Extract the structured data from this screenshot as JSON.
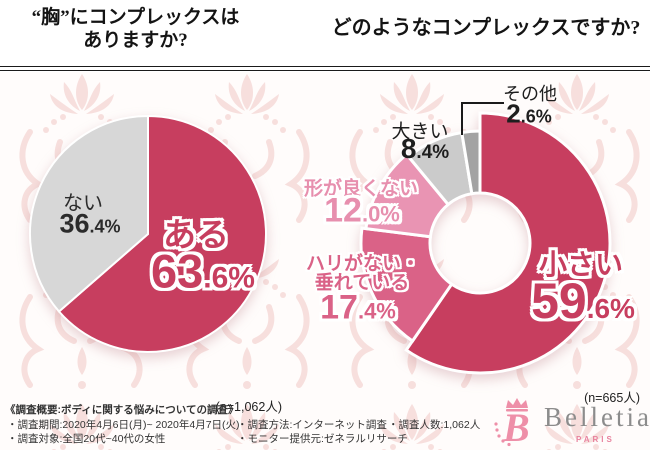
{
  "header": {
    "left_title_line1": "“胸”にコンプレックスは",
    "left_title_line2": "ありますか?",
    "right_title": "どのようなコンプレックスですか?"
  },
  "chart_data": [
    {
      "type": "pie",
      "title": "“胸”にコンプレックスはありますか?",
      "unit": "%",
      "sample_note": "(n=1,062人)",
      "slices": [
        {
          "label": "ある",
          "value": 63.6,
          "color": "#C73E5F"
        },
        {
          "label": "ない",
          "value": 36.4,
          "color": "#D7D7D7"
        }
      ]
    },
    {
      "type": "donut",
      "title": "どのようなコンプレックスですか?",
      "unit": "%",
      "sample_note": "(n=665人)",
      "slices": [
        {
          "label": "小さい",
          "value": 59.6,
          "color": "#C73E5F"
        },
        {
          "label": "ハリがない・垂れている",
          "label_lines": [
            "ハリがない・",
            "垂れている"
          ],
          "value": 17.4,
          "color": "#DA6287"
        },
        {
          "label": "形が良くない",
          "value": 12.0,
          "color": "#E994B3"
        },
        {
          "label": "大きい",
          "value": 8.4,
          "color": "#CBCBCB"
        },
        {
          "label": "その他",
          "value": 2.6,
          "color": "#A3A3A3"
        }
      ]
    }
  ],
  "footer": {
    "overview_title": "《調査概要:ボディに関する悩みについての調査》",
    "period": "・調査期間:2020年4月6日(月)~ 2020年4月7日(火)",
    "target": "・調査対象:全国20代~40代の女性",
    "method": "・調査方法:インターネット調査",
    "monitor": "・モニター提供元:ゼネラルリサーチ",
    "count": "・調査人数:1,062人"
  },
  "logo": {
    "brand": "Belletia",
    "sub": "PARIS",
    "brand_color": "#8C8C8C",
    "accent_color": "#E8829E"
  }
}
